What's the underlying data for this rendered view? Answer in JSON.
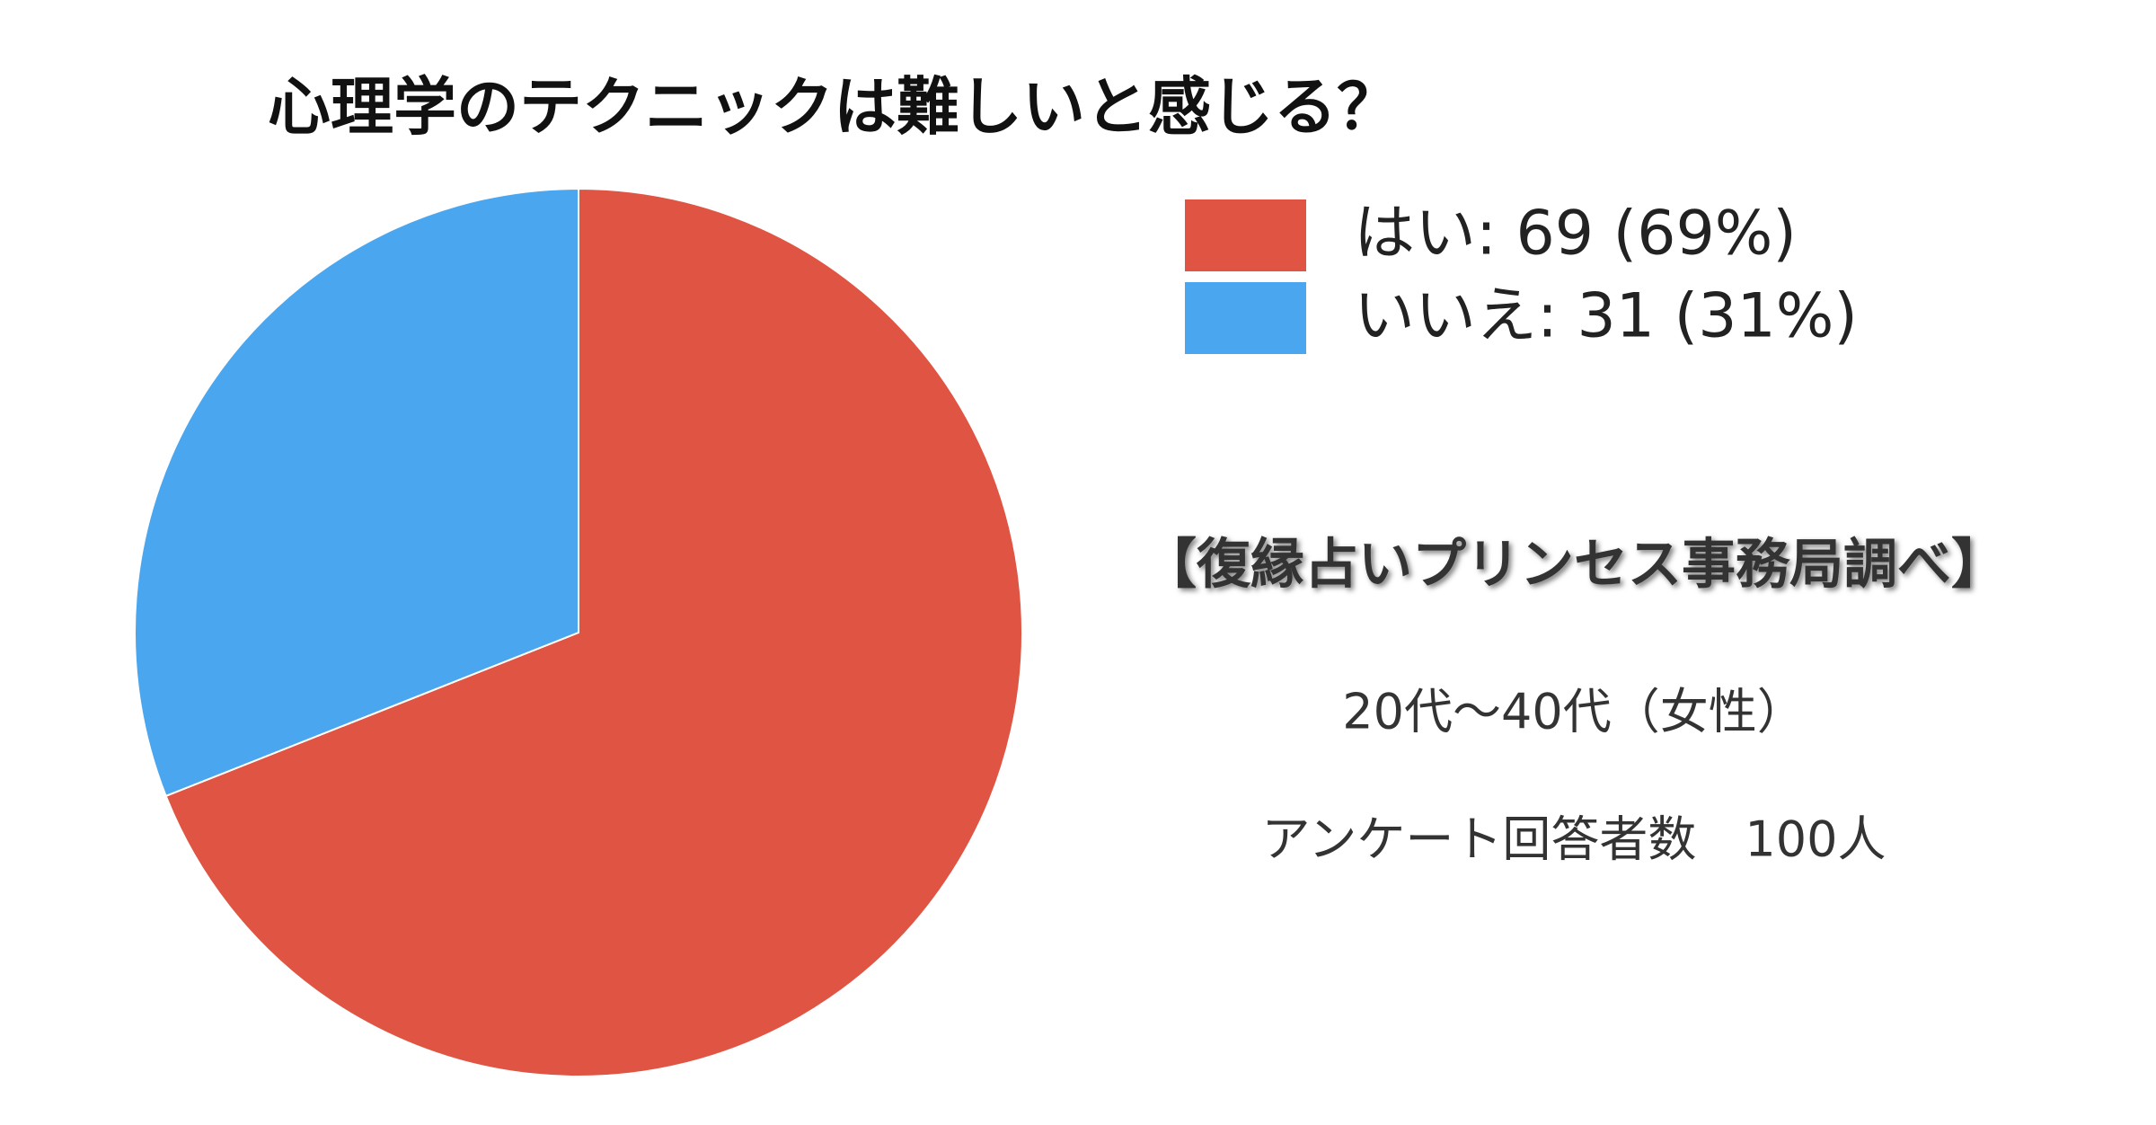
{
  "chart_data": {
    "type": "pie",
    "title": "心理学のテクニックは難しいと感じる？",
    "categories": [
      "はい",
      "いいえ"
    ],
    "values": [
      69,
      31
    ],
    "colors": [
      "#e05443",
      "#4aa6ee"
    ],
    "legend_labels": [
      "はい: 69 (69%)",
      "いいえ: 31 (31%)"
    ],
    "legend": "upper right",
    "annotations": [
      "【復縁占いプリンセス事務局調べ】",
      "20代～40代（女性）",
      "アンケート回答者数　100人"
    ]
  }
}
